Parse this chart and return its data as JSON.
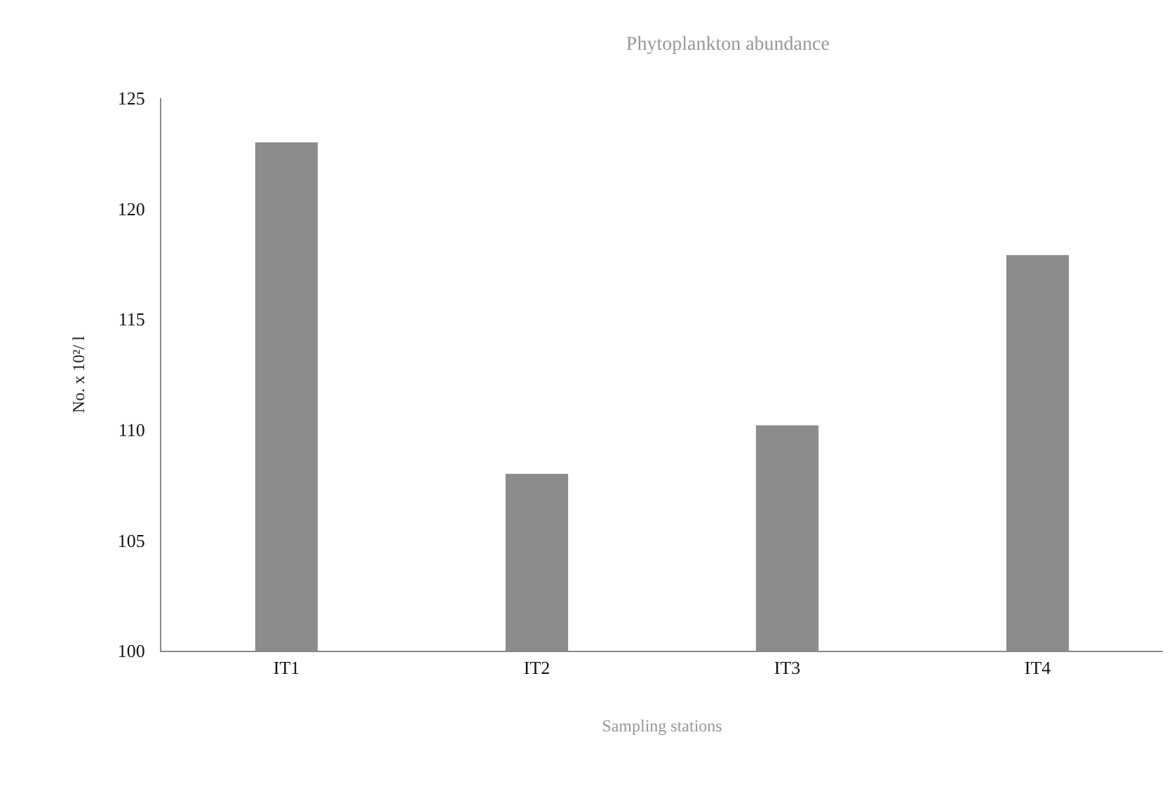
{
  "chart_data": {
    "type": "bar",
    "title": "Phytoplankton abundance",
    "xlabel": "Sampling stations",
    "ylabel": "No. x 10²/ l",
    "categories": [
      "IT1",
      "IT2",
      "IT3",
      "IT4"
    ],
    "values": [
      123,
      108,
      110.2,
      117.9
    ],
    "color": "#8c8c8c",
    "ylim": [
      100,
      125
    ],
    "yticks": [
      100,
      105,
      110,
      115,
      120,
      125
    ],
    "grid": false
  }
}
